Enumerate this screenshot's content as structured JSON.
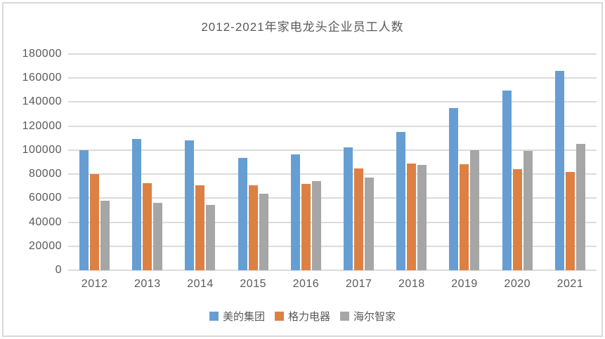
{
  "frame": {
    "border_color": "#D9D9D9"
  },
  "chart_data": {
    "type": "bar",
    "title": "2012-2021年家电龙头企业员工人数",
    "categories": [
      "2012",
      "2013",
      "2014",
      "2015",
      "2016",
      "2017",
      "2018",
      "2019",
      "2020",
      "2021"
    ],
    "series": [
      {
        "name": "美的集团",
        "color": "#669ED4",
        "values": [
          100000,
          109000,
          108000,
          93500,
          96500,
          102000,
          115000,
          135000,
          149500,
          166000
        ]
      },
      {
        "name": "格力电器",
        "color": "#DD8043",
        "values": [
          80000,
          72500,
          71000,
          70500,
          72000,
          85000,
          89000,
          88500,
          84000,
          82000
        ]
      },
      {
        "name": "海尔智家",
        "color": "#A6A6A6",
        "values": [
          58000,
          56000,
          54500,
          63500,
          74500,
          77000,
          87500,
          100000,
          99500,
          105000
        ]
      }
    ],
    "xlabel": "",
    "ylabel": "",
    "ylim": [
      0,
      180000
    ],
    "ytick_step": 20000,
    "ytick_labels": [
      "0",
      "20000",
      "40000",
      "60000",
      "80000",
      "100000",
      "120000",
      "140000",
      "160000",
      "180000"
    ],
    "grid": true,
    "grid_color": "#DBDBDB",
    "text_color": "#595959",
    "legend_position": "bottom"
  }
}
